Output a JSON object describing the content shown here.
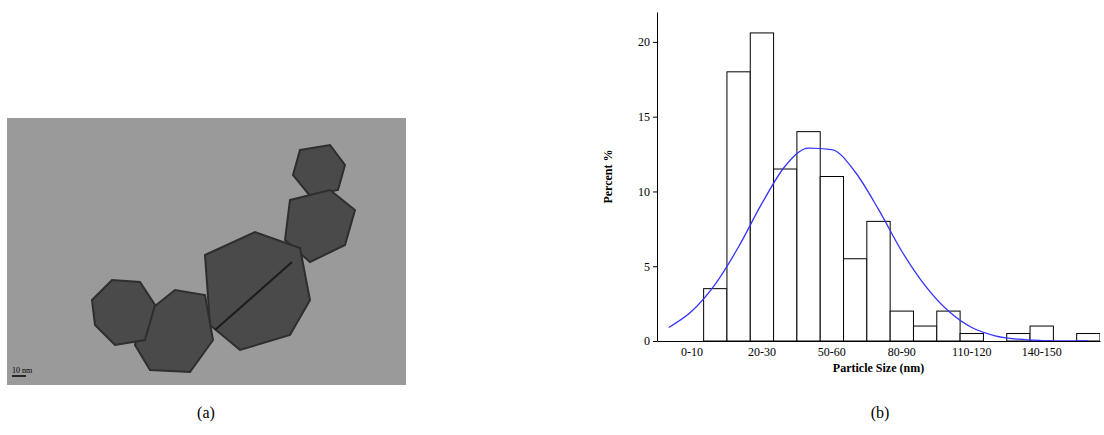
{
  "chart_data": {
    "type": "bar",
    "x_label": "Particle Size (nm)",
    "y_label": "Percent %",
    "categories": [
      null,
      "0-10",
      null,
      null,
      "20-30",
      null,
      null,
      "50-60",
      null,
      null,
      "80-90",
      null,
      null,
      "110-120",
      null,
      null,
      "140-150",
      null,
      null
    ],
    "values": [
      0,
      0,
      3.5,
      18,
      20.6,
      11.5,
      14,
      11,
      5.5,
      8,
      2,
      1,
      2,
      0.5,
      0,
      0.5,
      1,
      0,
      0.5
    ],
    "color": "#ffffff",
    "series": [
      {
        "type": "line",
        "color": "#3333ff",
        "values": [
          0.9,
          2.0,
          3.8,
          6.3,
          9.2,
          11.7,
          12.9,
          12.8,
          11.3,
          8.8,
          6.0,
          3.7,
          2.0,
          0.9,
          0.35,
          0.12,
          0.03,
          0,
          0
        ]
      }
    ],
    "ylim": [
      0,
      22
    ],
    "yticks": [
      0,
      5,
      10,
      15,
      20
    ],
    "grid": false
  },
  "figure": {
    "image_label": "(a)",
    "scale_bar": "10 nm",
    "chart_label": "(b)"
  }
}
